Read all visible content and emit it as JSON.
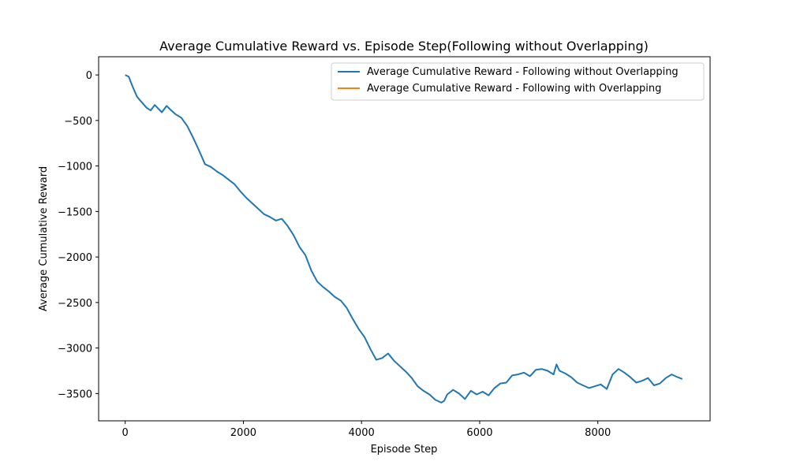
{
  "chart_data": {
    "type": "line",
    "title": "Average Cumulative Reward vs. Episode Step(Following without Overlapping)",
    "xlabel": "Episode Step",
    "ylabel": "Average Cumulative Reward",
    "xlim": [
      -450,
      9900
    ],
    "ylim": [
      -3800,
      200
    ],
    "xticks": [
      0,
      2000,
      4000,
      6000,
      8000
    ],
    "xtick_labels": [
      "0",
      "2000",
      "4000",
      "6000",
      "8000"
    ],
    "yticks": [
      0,
      -500,
      -1000,
      -1500,
      -2000,
      -2500,
      -3000,
      -3500
    ],
    "ytick_labels": [
      "0",
      "−500",
      "−1000",
      "−1500",
      "−2000",
      "−2500",
      "−3000",
      "−3500"
    ],
    "grid": false,
    "legend_position": "upper right",
    "series": [
      {
        "name": "Average Cumulative Reward - Following without Overlapping",
        "color": "#1f77b4",
        "x": [
          0,
          60,
          120,
          200,
          280,
          360,
          430,
          500,
          560,
          620,
          700,
          780,
          850,
          950,
          1050,
          1150,
          1250,
          1350,
          1450,
          1550,
          1650,
          1750,
          1850,
          1950,
          2050,
          2150,
          2250,
          2350,
          2450,
          2550,
          2650,
          2750,
          2850,
          2950,
          3050,
          3150,
          3250,
          3350,
          3450,
          3550,
          3650,
          3750,
          3850,
          3950,
          4050,
          4150,
          4250,
          4350,
          4450,
          4550,
          4650,
          4750,
          4850,
          4950,
          5050,
          5150,
          5250,
          5350,
          5400,
          5450,
          5550,
          5650,
          5750,
          5850,
          5950,
          6050,
          6150,
          6250,
          6350,
          6450,
          6550,
          6650,
          6750,
          6850,
          6950,
          7050,
          7150,
          7250,
          7300,
          7350,
          7450,
          7550,
          7650,
          7750,
          7850,
          7950,
          8050,
          8150,
          8250,
          8350,
          8450,
          8550,
          8650,
          8750,
          8850,
          8950,
          9050,
          9150,
          9250,
          9350,
          9430
        ],
        "values": [
          0,
          -20,
          -120,
          -240,
          -300,
          -360,
          -390,
          -330,
          -370,
          -410,
          -340,
          -390,
          -430,
          -470,
          -560,
          -690,
          -830,
          -980,
          -1010,
          -1060,
          -1100,
          -1150,
          -1200,
          -1280,
          -1350,
          -1410,
          -1470,
          -1530,
          -1560,
          -1600,
          -1580,
          -1660,
          -1760,
          -1890,
          -1980,
          -2150,
          -2270,
          -2330,
          -2380,
          -2440,
          -2480,
          -2560,
          -2680,
          -2790,
          -2880,
          -3010,
          -3130,
          -3110,
          -3060,
          -3140,
          -3200,
          -3260,
          -3330,
          -3420,
          -3470,
          -3510,
          -3570,
          -3600,
          -3580,
          -3510,
          -3460,
          -3500,
          -3560,
          -3470,
          -3510,
          -3480,
          -3520,
          -3440,
          -3390,
          -3380,
          -3300,
          -3290,
          -3270,
          -3310,
          -3240,
          -3230,
          -3250,
          -3290,
          -3180,
          -3250,
          -3280,
          -3320,
          -3380,
          -3410,
          -3440,
          -3420,
          -3400,
          -3450,
          -3290,
          -3230,
          -3270,
          -3320,
          -3380,
          -3360,
          -3330,
          -3410,
          -3390,
          -3330,
          -3290,
          -3320,
          -3340
        ]
      },
      {
        "name": "Average Cumulative Reward - Following with Overlapping",
        "color": "#ff7f0e",
        "x": [],
        "values": []
      }
    ]
  }
}
